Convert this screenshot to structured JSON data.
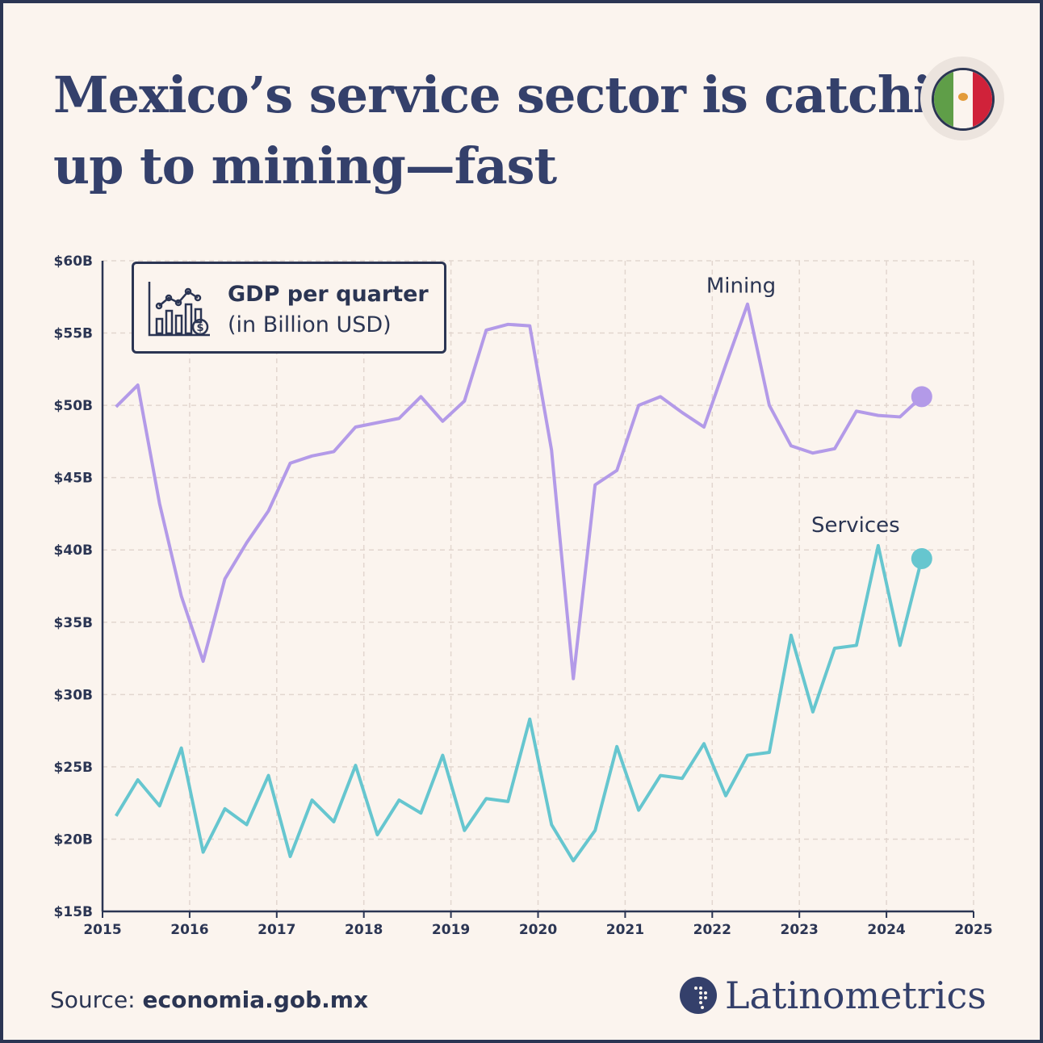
{
  "title": "Mexico’s service sector is catching up to mining—fast",
  "source_label": "Source:",
  "source_value": "economia.gob.mx",
  "brand": "Latinometrics",
  "flag_icon": "mexico-flag-icon",
  "colors": {
    "mining": "#b39ae8",
    "services": "#66c6cf",
    "text": "#2b3553",
    "background": "#fbf4ee",
    "grid": "#e2d6cf"
  },
  "chart_data": {
    "type": "line",
    "legend": {
      "title": "GDP per quarter",
      "subtitle": "(in Billion USD)",
      "icon": "bar-chart-money-icon",
      "placement": "top-left"
    },
    "xlim": [
      2015,
      2025
    ],
    "x_ticks": [
      "2015",
      "2016",
      "2017",
      "2018",
      "2019",
      "2020",
      "2021",
      "2022",
      "2023",
      "2024",
      "2025"
    ],
    "ylim": [
      15,
      60
    ],
    "y_ticks": [
      {
        "value": 60,
        "label": "$60B"
      },
      {
        "value": 55,
        "label": "$55B"
      },
      {
        "value": 50,
        "label": "$50B"
      },
      {
        "value": 45,
        "label": "$45B"
      },
      {
        "value": 40,
        "label": "$40B"
      },
      {
        "value": 35,
        "label": "$35B"
      },
      {
        "value": 30,
        "label": "$30B"
      },
      {
        "value": 25,
        "label": "$25B"
      },
      {
        "value": 20,
        "label": "$20B"
      },
      {
        "value": 15,
        "label": "$15B"
      }
    ],
    "grid": true,
    "x": [
      "2015 Q1",
      "2015 Q2",
      "2015 Q3",
      "2015 Q4",
      "2016 Q1",
      "2016 Q2",
      "2016 Q3",
      "2016 Q4",
      "2017 Q1",
      "2017 Q2",
      "2017 Q3",
      "2017 Q4",
      "2018 Q1",
      "2018 Q2",
      "2018 Q3",
      "2018 Q4",
      "2019 Q1",
      "2019 Q2",
      "2019 Q3",
      "2019 Q4",
      "2020 Q1",
      "2020 Q2",
      "2020 Q3",
      "2020 Q4",
      "2021 Q1",
      "2021 Q2",
      "2021 Q3",
      "2021 Q4",
      "2022 Q1",
      "2022 Q2",
      "2022 Q3",
      "2022 Q4",
      "2023 Q1",
      "2023 Q2",
      "2023 Q3",
      "2023 Q4",
      "2024 Q1",
      "2024 Q2"
    ],
    "series": [
      {
        "name": "Mining",
        "values": [
          49.9,
          51.4,
          43.2,
          36.8,
          32.3,
          38.0,
          40.5,
          42.7,
          46.0,
          46.5,
          46.8,
          48.5,
          48.8,
          49.1,
          50.6,
          48.9,
          50.3,
          55.2,
          55.6,
          55.5,
          46.9,
          31.1,
          44.5,
          45.5,
          50.0,
          50.6,
          49.5,
          48.5,
          52.8,
          57.0,
          50.0,
          47.2,
          46.7,
          47.0,
          49.6,
          49.3,
          49.2,
          50.6
        ]
      },
      {
        "name": "Services",
        "values": [
          21.6,
          24.1,
          22.3,
          26.3,
          19.1,
          22.1,
          21.0,
          24.4,
          18.8,
          22.7,
          21.2,
          25.1,
          20.3,
          22.7,
          21.8,
          25.8,
          20.6,
          22.8,
          22.6,
          28.3,
          21.0,
          18.5,
          20.6,
          26.4,
          22.0,
          24.4,
          24.2,
          26.6,
          23.0,
          25.8,
          26.0,
          34.1,
          28.8,
          33.2,
          33.4,
          40.3,
          33.4,
          39.4
        ]
      }
    ]
  }
}
